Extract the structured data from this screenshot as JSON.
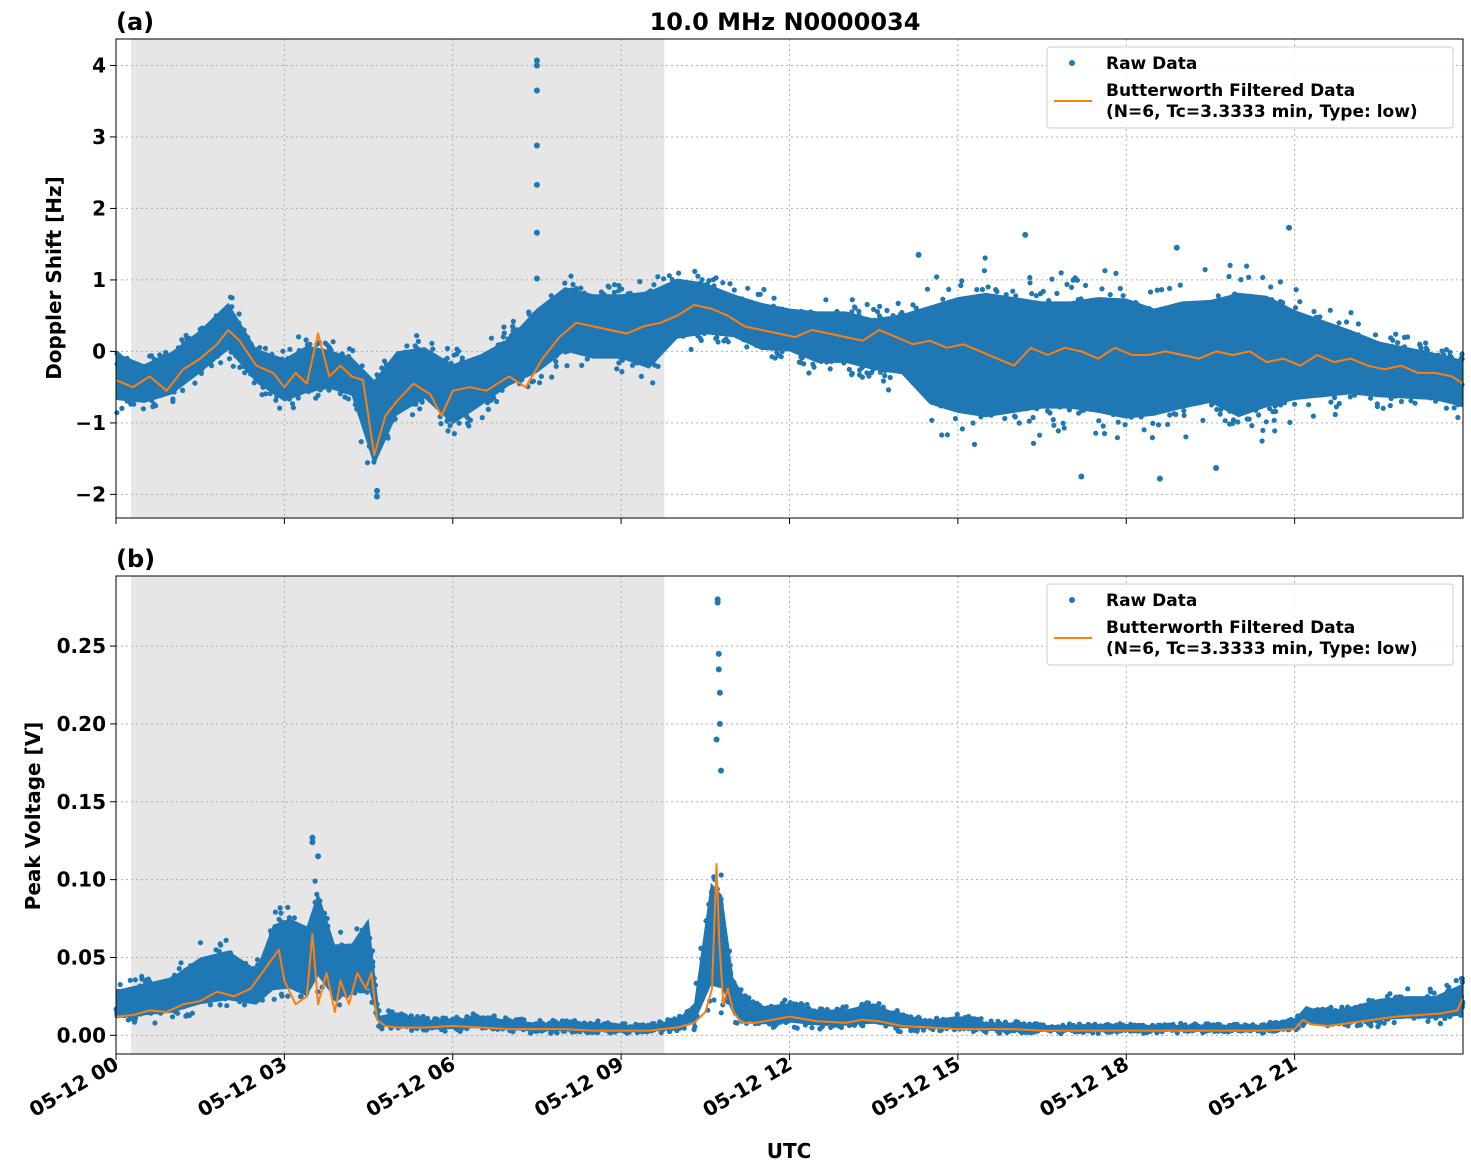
{
  "figure": {
    "title": "10.0 MHz N0000034",
    "xlabel": "UTC",
    "x_tick_labels": [
      "05-12 00",
      "05-12 03",
      "05-12 06",
      "05-12 09",
      "05-12 12",
      "05-12 15",
      "05-12 18",
      "05-12 21"
    ]
  },
  "colors": {
    "raw": "#1f77b4",
    "filtered": "#ff7f0e",
    "shade": "#e6e6e6",
    "grid": "#b0b0b0"
  },
  "chart_data": [
    {
      "panel_label": "(a)",
      "type": "scatter",
      "ylabel": "Doppler Shift [Hz]",
      "x_unit": "hours UTC on 05-12",
      "xlim": [
        0,
        24
      ],
      "ylim": [
        -2.33,
        4.37
      ],
      "y_ticks": [
        -2,
        -1,
        0,
        1,
        2,
        3,
        4
      ],
      "y_tick_labels": [
        "−2",
        "−1",
        "0",
        "1",
        "2",
        "3",
        "4"
      ],
      "shaded_interval": [
        0.27,
        9.77
      ],
      "grid": true,
      "legend": {
        "placement": "top-right",
        "raw_label": "Raw Data",
        "filtered_label_line1": "Butterworth Filtered Data",
        "filtered_label_line2": "(N=6, Tc=3.3333 min, Type: low)"
      },
      "series": [
        {
          "name": "Raw Data",
          "kind": "points",
          "x": [
            0.0,
            0.5,
            1.0,
            1.5,
            2.0,
            2.5,
            3.0,
            3.4,
            3.8,
            4.2,
            4.6,
            5.0,
            5.5,
            6.0,
            6.5,
            7.0,
            7.5,
            8.0,
            8.5,
            9.0,
            9.5,
            10.0,
            10.5,
            11.0,
            11.5,
            12.0,
            12.5,
            13.0,
            13.5,
            14.0,
            14.5,
            15.0,
            15.5,
            16.0,
            16.5,
            17.0,
            17.5,
            18.0,
            18.5,
            19.0,
            19.5,
            20.0,
            20.5,
            21.0,
            21.5,
            22.0,
            22.5,
            23.0,
            23.5,
            24.0
          ],
          "lo": [
            -0.9,
            -0.9,
            -0.8,
            -0.5,
            -0.2,
            -0.6,
            -0.9,
            -0.8,
            -0.7,
            -0.8,
            -2.0,
            -1.2,
            -0.9,
            -1.3,
            -1.0,
            -0.7,
            -0.6,
            -0.3,
            -0.4,
            -0.4,
            -0.6,
            -0.1,
            0.0,
            0.0,
            -0.2,
            -0.2,
            -0.4,
            -0.4,
            -0.5,
            -0.6,
            -1.2,
            -1.4,
            -1.5,
            -1.4,
            -1.3,
            -1.3,
            -1.4,
            -1.5,
            -1.4,
            -1.3,
            -1.2,
            -1.5,
            -1.3,
            -1.1,
            -1.0,
            -0.9,
            -0.9,
            -0.9,
            -0.9,
            -1.0
          ],
          "hi": [
            0.2,
            0.0,
            0.2,
            0.5,
            0.9,
            0.2,
            0.1,
            0.3,
            0.2,
            0.1,
            0.0,
            0.3,
            0.3,
            0.1,
            0.2,
            0.4,
            0.9,
            1.2,
            1.1,
            1.1,
            1.2,
            1.3,
            1.2,
            1.0,
            0.9,
            0.8,
            0.8,
            0.8,
            0.7,
            0.8,
            1.1,
            1.3,
            1.4,
            1.3,
            1.2,
            1.2,
            1.3,
            1.3,
            1.1,
            1.2,
            1.2,
            1.4,
            1.3,
            1.0,
            0.8,
            0.6,
            0.4,
            0.3,
            0.2,
            0.1
          ],
          "outliers_x": [
            7.5,
            7.5,
            7.5,
            7.5,
            7.5,
            7.5,
            7.5,
            4.65,
            4.65,
            16.2,
            18.9,
            20.9,
            14.3,
            19.6,
            18.6,
            17.2
          ],
          "outliers_y": [
            4.07,
            4.0,
            3.65,
            2.88,
            2.33,
            1.66,
            1.02,
            -2.03,
            -1.95,
            1.63,
            1.45,
            1.73,
            1.35,
            -1.63,
            -1.78,
            -1.75
          ]
        },
        {
          "name": "Butterworth Filtered Data",
          "kind": "line",
          "x": [
            0.0,
            0.3,
            0.6,
            0.9,
            1.2,
            1.5,
            1.8,
            2.0,
            2.2,
            2.5,
            2.8,
            3.0,
            3.2,
            3.4,
            3.6,
            3.8,
            4.0,
            4.2,
            4.4,
            4.6,
            4.8,
            5.0,
            5.3,
            5.6,
            5.8,
            6.0,
            6.3,
            6.6,
            7.0,
            7.3,
            7.6,
            7.9,
            8.2,
            8.5,
            8.8,
            9.1,
            9.4,
            9.7,
            10.0,
            10.3,
            10.6,
            10.9,
            11.2,
            11.5,
            11.8,
            12.1,
            12.4,
            12.7,
            13.0,
            13.3,
            13.6,
            13.9,
            14.2,
            14.5,
            14.8,
            15.1,
            15.4,
            15.7,
            16.0,
            16.3,
            16.6,
            16.9,
            17.2,
            17.5,
            17.8,
            18.1,
            18.4,
            18.7,
            19.0,
            19.3,
            19.6,
            19.9,
            20.2,
            20.5,
            20.8,
            21.1,
            21.4,
            21.7,
            22.0,
            22.3,
            22.6,
            22.9,
            23.2,
            23.5,
            23.8,
            24.0
          ],
          "y": [
            -0.4,
            -0.5,
            -0.35,
            -0.55,
            -0.25,
            -0.1,
            0.1,
            0.3,
            0.15,
            -0.2,
            -0.3,
            -0.5,
            -0.3,
            -0.45,
            0.25,
            -0.35,
            -0.2,
            -0.35,
            -0.4,
            -1.45,
            -0.9,
            -0.7,
            -0.45,
            -0.6,
            -0.9,
            -0.55,
            -0.5,
            -0.55,
            -0.35,
            -0.5,
            -0.1,
            0.2,
            0.4,
            0.35,
            0.3,
            0.25,
            0.35,
            0.4,
            0.5,
            0.65,
            0.6,
            0.5,
            0.35,
            0.3,
            0.25,
            0.2,
            0.3,
            0.25,
            0.2,
            0.15,
            0.3,
            0.2,
            0.1,
            0.15,
            0.05,
            0.1,
            0.0,
            -0.1,
            -0.2,
            0.05,
            -0.05,
            0.05,
            0.0,
            -0.1,
            0.05,
            -0.05,
            -0.05,
            0.0,
            -0.05,
            -0.1,
            0.0,
            -0.05,
            0.0,
            -0.15,
            -0.1,
            -0.2,
            -0.05,
            -0.15,
            -0.1,
            -0.2,
            -0.25,
            -0.2,
            -0.3,
            -0.3,
            -0.35,
            -0.45
          ]
        }
      ]
    },
    {
      "panel_label": "(b)",
      "type": "scatter",
      "ylabel": "Peak Voltage [V]",
      "x_unit": "hours UTC on 05-12",
      "xlim": [
        0,
        24
      ],
      "ylim": [
        -0.012,
        0.295
      ],
      "y_ticks": [
        0.0,
        0.05,
        0.1,
        0.15,
        0.2,
        0.25
      ],
      "y_tick_labels": [
        "0.00",
        "0.05",
        "0.10",
        "0.15",
        "0.20",
        "0.25"
      ],
      "shaded_interval": [
        0.27,
        9.77
      ],
      "grid": true,
      "legend": {
        "placement": "top-right",
        "raw_label": "Raw Data",
        "filtered_label_line1": "Butterworth Filtered Data",
        "filtered_label_line2": "(N=6, Tc=3.3333 min, Type: low)"
      },
      "series": [
        {
          "name": "Raw Data",
          "kind": "points",
          "x": [
            0.0,
            0.5,
            1.0,
            1.5,
            2.0,
            2.5,
            2.8,
            3.1,
            3.4,
            3.6,
            3.9,
            4.2,
            4.5,
            4.7,
            5.0,
            5.5,
            6.0,
            6.5,
            7.0,
            7.5,
            8.0,
            8.5,
            9.0,
            9.5,
            10.0,
            10.3,
            10.6,
            10.8,
            11.0,
            11.2,
            11.5,
            12.0,
            12.5,
            13.0,
            13.5,
            14.0,
            14.5,
            15.0,
            15.5,
            16.0,
            16.5,
            17.0,
            17.5,
            18.0,
            18.5,
            19.0,
            19.5,
            20.0,
            20.5,
            21.0,
            21.2,
            21.5,
            22.0,
            22.5,
            23.0,
            23.5,
            24.0
          ],
          "lo": [
            0.005,
            0.006,
            0.007,
            0.01,
            0.012,
            0.012,
            0.015,
            0.015,
            0.01,
            0.02,
            0.012,
            0.015,
            0.015,
            0.003,
            0.002,
            0.002,
            0.002,
            0.002,
            0.001,
            0.001,
            0.001,
            0.001,
            0.001,
            0.001,
            0.002,
            0.003,
            0.01,
            0.01,
            0.005,
            0.004,
            0.004,
            0.004,
            0.003,
            0.003,
            0.003,
            0.002,
            0.002,
            0.002,
            0.001,
            0.001,
            0.001,
            0.001,
            0.001,
            0.001,
            0.001,
            0.001,
            0.001,
            0.001,
            0.001,
            0.002,
            0.006,
            0.004,
            0.004,
            0.005,
            0.006,
            0.006,
            0.006
          ],
          "hi": [
            0.035,
            0.04,
            0.045,
            0.06,
            0.065,
            0.05,
            0.085,
            0.09,
            0.085,
            0.11,
            0.07,
            0.07,
            0.09,
            0.015,
            0.018,
            0.012,
            0.012,
            0.015,
            0.012,
            0.01,
            0.01,
            0.01,
            0.008,
            0.008,
            0.012,
            0.025,
            0.12,
            0.11,
            0.045,
            0.03,
            0.022,
            0.025,
            0.02,
            0.02,
            0.025,
            0.015,
            0.012,
            0.015,
            0.01,
            0.01,
            0.008,
            0.008,
            0.008,
            0.008,
            0.008,
            0.008,
            0.008,
            0.008,
            0.008,
            0.012,
            0.022,
            0.018,
            0.022,
            0.028,
            0.03,
            0.03,
            0.04
          ],
          "outliers_x": [
            10.72,
            10.72,
            10.74,
            10.74,
            10.76,
            10.76,
            10.7,
            10.78,
            3.5,
            3.5,
            3.6
          ],
          "outliers_y": [
            0.28,
            0.278,
            0.245,
            0.235,
            0.22,
            0.2,
            0.19,
            0.17,
            0.127,
            0.124,
            0.115
          ]
        },
        {
          "name": "Butterworth Filtered Data",
          "kind": "line",
          "x": [
            0.0,
            0.3,
            0.6,
            0.9,
            1.2,
            1.5,
            1.8,
            2.1,
            2.4,
            2.7,
            2.9,
            3.0,
            3.2,
            3.4,
            3.5,
            3.6,
            3.75,
            3.9,
            4.0,
            4.15,
            4.3,
            4.45,
            4.55,
            4.65,
            4.8,
            5.0,
            5.5,
            6.0,
            6.5,
            7.0,
            7.5,
            8.0,
            8.5,
            9.0,
            9.5,
            10.0,
            10.3,
            10.5,
            10.62,
            10.7,
            10.75,
            10.82,
            10.9,
            11.0,
            11.1,
            11.2,
            11.4,
            11.7,
            12.0,
            12.5,
            13.0,
            13.3,
            13.6,
            14.0,
            14.5,
            15.0,
            15.5,
            16.0,
            16.5,
            17.0,
            17.5,
            18.0,
            18.5,
            19.0,
            19.5,
            20.0,
            20.5,
            21.0,
            21.15,
            21.3,
            21.6,
            22.0,
            22.4,
            22.8,
            23.2,
            23.6,
            23.9,
            24.0
          ],
          "y": [
            0.012,
            0.013,
            0.016,
            0.015,
            0.02,
            0.022,
            0.028,
            0.025,
            0.03,
            0.045,
            0.055,
            0.035,
            0.02,
            0.025,
            0.065,
            0.02,
            0.04,
            0.015,
            0.035,
            0.02,
            0.04,
            0.03,
            0.04,
            0.01,
            0.006,
            0.005,
            0.005,
            0.006,
            0.005,
            0.004,
            0.004,
            0.004,
            0.003,
            0.003,
            0.003,
            0.005,
            0.008,
            0.015,
            0.03,
            0.11,
            0.06,
            0.02,
            0.03,
            0.015,
            0.01,
            0.008,
            0.008,
            0.01,
            0.012,
            0.009,
            0.008,
            0.01,
            0.009,
            0.006,
            0.005,
            0.004,
            0.004,
            0.004,
            0.003,
            0.003,
            0.003,
            0.003,
            0.003,
            0.003,
            0.003,
            0.003,
            0.003,
            0.004,
            0.01,
            0.007,
            0.006,
            0.008,
            0.01,
            0.012,
            0.013,
            0.014,
            0.016,
            0.024
          ]
        }
      ]
    }
  ]
}
